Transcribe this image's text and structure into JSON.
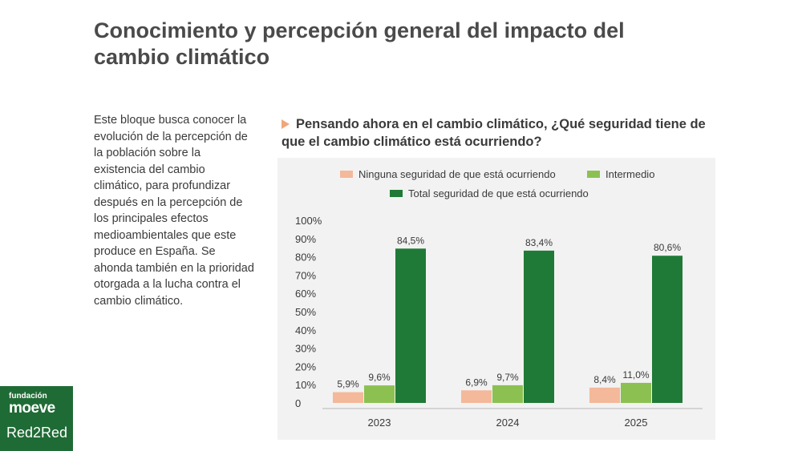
{
  "page": {
    "title": "Conocimiento y percepción general del impacto del cambio climático",
    "description": "Este bloque busca conocer la evolución de la percepción de la población sobre la existencia del cambio climático, para profundizar después en la percepción de los principales efectos medioambientales que este produce en España. Se ahonda también en la prioridad otorgada a la lucha contra el cambio climático.",
    "question": "Pensando ahora en el cambio climático, ¿Qué seguridad tiene de que el cambio climático está ocurriendo?"
  },
  "logo": {
    "line1": "fundación",
    "line2": "moeve",
    "line3": "Red2Red"
  },
  "chart_data": {
    "type": "bar",
    "categories": [
      "2023",
      "2024",
      "2025"
    ],
    "series": [
      {
        "name": "Ninguna seguridad de que está ocurriendo",
        "color": "#f4b89a",
        "values": [
          5.9,
          6.9,
          8.4
        ],
        "labels": [
          "5,9%",
          "6,9%",
          "8,4%"
        ]
      },
      {
        "name": "Intermedio",
        "color": "#8cc152",
        "values": [
          9.6,
          9.7,
          11.0
        ],
        "labels": [
          "9,6%",
          "9,7%",
          "11,0%"
        ]
      },
      {
        "name": "Total seguridad de que está ocurriendo",
        "color": "#1f7a37",
        "values": [
          84.5,
          83.4,
          80.6
        ],
        "labels": [
          "84,5%",
          "83,4%",
          "80,6%"
        ]
      }
    ],
    "yticks": [
      "0",
      "10%",
      "20%",
      "30%",
      "40%",
      "50%",
      "60%",
      "70%",
      "80%",
      "90%",
      "100%"
    ],
    "ylim": [
      0,
      100
    ],
    "legend_position": "top"
  }
}
